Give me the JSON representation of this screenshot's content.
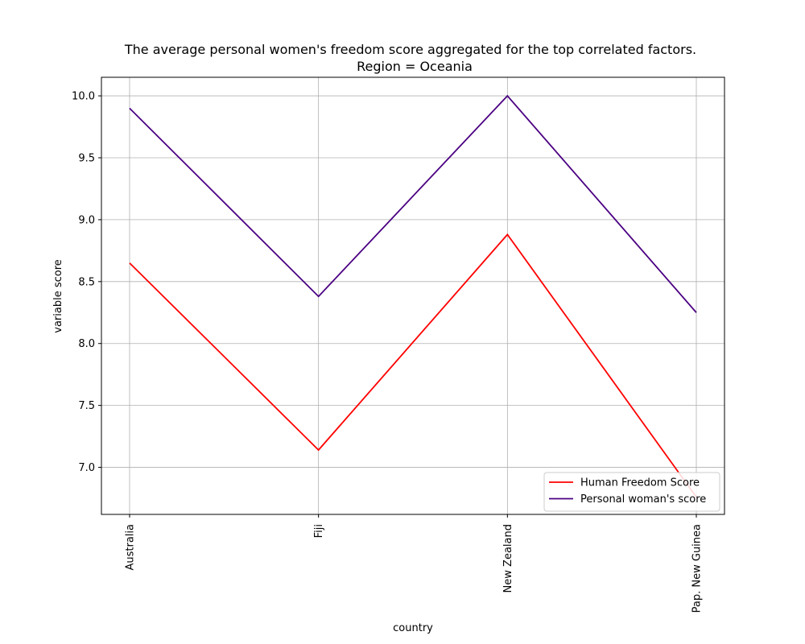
{
  "chart_data": {
    "type": "line",
    "title": "The average personal women's freedom score aggregated for the top correlated factors.",
    "subtitle": "Region = Oceania",
    "xlabel": "country",
    "ylabel": "variable score",
    "categories": [
      "Australia",
      "Fiji",
      "New Zealand",
      "Pap. New Guinea"
    ],
    "yticks": [
      "7.0",
      "7.5",
      "8.0",
      "8.5",
      "9.0",
      "9.5",
      "10.0"
    ],
    "ylim": [
      6.62,
      10.15
    ],
    "grid": true,
    "legend_position": "bottom-right",
    "series": [
      {
        "name": "Human Freedom Score",
        "color": "#ff0000",
        "values": [
          8.65,
          7.14,
          8.88,
          6.76
        ]
      },
      {
        "name": "Personal woman's score",
        "color": "#4b0082",
        "values": [
          9.9,
          8.38,
          10.0,
          8.25
        ]
      }
    ]
  }
}
